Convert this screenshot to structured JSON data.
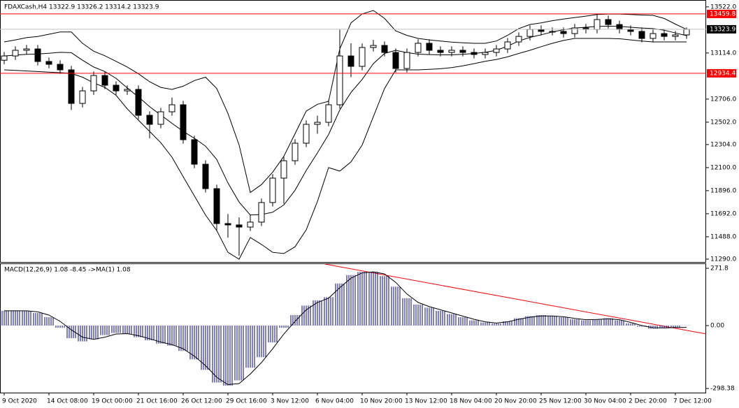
{
  "chart_data": [
    {
      "type": "candlestick",
      "title": "FDAXCash,H4  13322.9 13326.2 13314.2 13323.9",
      "categories": [
        "9 Oct 2020",
        null,
        null,
        null,
        "14 Oct 08:00",
        null,
        null,
        null,
        "19 Oct 00:00",
        null,
        null,
        null,
        "21 Oct 16:00",
        null,
        null,
        null,
        "26 Oct 12:00",
        null,
        null,
        null,
        "29 Oct 16:00",
        null,
        null,
        null,
        "3 Nov 12:00",
        null,
        null,
        null,
        "6 Nov 04:00",
        null,
        null,
        null,
        "10 Nov 20:00",
        null,
        null,
        null,
        "13 Nov 12:00",
        null,
        null,
        null,
        "18 Nov 04:00",
        null,
        null,
        null,
        "20 Nov 20:00",
        null,
        null,
        null,
        "25 Nov 12:00",
        null,
        null,
        null,
        "30 Nov 04:00",
        null,
        null,
        null,
        "2 Dec 20:00",
        null,
        null,
        null,
        "7 Dec 12:00",
        null
      ],
      "open": [
        13050,
        13088,
        13138,
        13150,
        13039,
        13014,
        12965,
        12668,
        12779,
        12915,
        12829,
        12779,
        12792,
        12563,
        12483,
        12594,
        12656,
        12347,
        12130,
        11914,
        11605,
        11593,
        11574,
        11618,
        11791,
        12007,
        12161,
        12316,
        12483,
        12501,
        12656,
        13088,
        12996,
        13163,
        13181,
        13119,
        12977,
        13119,
        13200,
        13138,
        13119,
        13138,
        13119,
        13101,
        13119,
        13150,
        13212,
        13261,
        13323,
        13305,
        13305,
        13286,
        13336,
        13323,
        13410,
        13366,
        13323,
        13305,
        13243,
        13286,
        13261,
        13274
      ],
      "high": [
        13123,
        13173,
        13185,
        13185,
        13074,
        13049,
        13000,
        12814,
        12950,
        12950,
        12864,
        12827,
        12827,
        12598,
        12629,
        12720,
        12691,
        12382,
        12165,
        11949,
        11690,
        11660,
        11680,
        11826,
        12042,
        12196,
        12351,
        12518,
        12560,
        12700,
        13320,
        13200,
        13198,
        13230,
        13216,
        13154,
        13154,
        13235,
        13235,
        13173,
        13173,
        13173,
        13154,
        13154,
        13185,
        13247,
        13296,
        13358,
        13358,
        13340,
        13340,
        13371,
        13371,
        13460,
        13445,
        13401,
        13358,
        13340,
        13321,
        13321,
        13309,
        13340
      ],
      "low": [
        13015,
        13053,
        13103,
        13004,
        12979,
        12930,
        12610,
        12633,
        12744,
        12794,
        12744,
        12744,
        12528,
        12360,
        12448,
        12559,
        12312,
        12095,
        11879,
        11540,
        11480,
        11320,
        11539,
        11583,
        11756,
        11780,
        12126,
        12281,
        12400,
        12466,
        12621,
        12900,
        12961,
        13128,
        13084,
        12942,
        12942,
        13084,
        13103,
        13084,
        13084,
        13084,
        13066,
        13066,
        13084,
        13115,
        13177,
        13226,
        13270,
        13270,
        13251,
        13251,
        13288,
        13288,
        13331,
        13288,
        13270,
        13208,
        13208,
        13226,
        13226,
        13239
      ],
      "close": [
        13088,
        13138,
        13150,
        13039,
        13014,
        12965,
        12668,
        12779,
        12915,
        12829,
        12779,
        12792,
        12563,
        12483,
        12594,
        12656,
        12347,
        12130,
        11914,
        11605,
        11593,
        11574,
        11618,
        11791,
        12007,
        12161,
        12316,
        12483,
        12501,
        12656,
        13088,
        12996,
        13163,
        13181,
        13119,
        12977,
        13119,
        13200,
        13138,
        13119,
        13138,
        13119,
        13101,
        13119,
        13150,
        13212,
        13261,
        13323,
        13305,
        13305,
        13286,
        13336,
        13323,
        13410,
        13366,
        13323,
        13305,
        13243,
        13286,
        13261,
        13274,
        13323.9
      ],
      "bands": {
        "upper": [
          13212,
          13230,
          13250,
          13260,
          13280,
          13300,
          13300,
          13200,
          13130,
          13090,
          13040,
          12990,
          12930,
          12860,
          12810,
          12792,
          12820,
          12870,
          12900,
          12800,
          12580,
          12300,
          11880,
          11950,
          12060,
          12200,
          12400,
          12600,
          12660,
          12687,
          13150,
          13380,
          13460,
          13490,
          13420,
          13310,
          13270,
          13243,
          13230,
          13220,
          13210,
          13205,
          13200,
          13200,
          13220,
          13270,
          13330,
          13366,
          13380,
          13400,
          13415,
          13428,
          13440,
          13455,
          13459,
          13459,
          13455,
          13450,
          13447,
          13420,
          13370,
          13323
        ],
        "middle": [
          13088,
          13095,
          13102,
          13105,
          13112,
          13120,
          13117,
          13050,
          12990,
          12950,
          12890,
          12805,
          12725,
          12640,
          12565,
          12492,
          12420,
          12360,
          12290,
          12172,
          11965,
          11795,
          11681,
          11685,
          11705,
          11770,
          11900,
          12075,
          12230,
          12393,
          12610,
          12765,
          12880,
          13020,
          13110,
          13138,
          13118,
          13104,
          13100,
          13098,
          13098,
          13102,
          13110,
          13120,
          13138,
          13175,
          13220,
          13252,
          13275,
          13300,
          13320,
          13335,
          13342,
          13349,
          13351,
          13350,
          13342,
          13335,
          13330,
          13316,
          13291,
          13268
        ],
        "lower": [
          12965,
          12960,
          12955,
          12950,
          12945,
          12940,
          12934,
          12900,
          12850,
          12810,
          12740,
          12620,
          12520,
          12420,
          12320,
          12192,
          12020,
          11850,
          11680,
          11543,
          11350,
          11290,
          11482,
          11420,
          11350,
          11340,
          11400,
          11550,
          11800,
          12100,
          12069,
          12150,
          12300,
          12550,
          12800,
          12965,
          12965,
          12965,
          12970,
          12975,
          12985,
          13000,
          13020,
          13040,
          13057,
          13080,
          13110,
          13138,
          13170,
          13200,
          13225,
          13243,
          13243,
          13243,
          13243,
          13240,
          13230,
          13220,
          13212,
          13212,
          13212,
          13212
        ]
      },
      "hlines": [
        13459.8,
        12934.4
      ],
      "hline_color": "#ff0000",
      "last_price": 13323.9,
      "ylim": [
        11265,
        13583
      ],
      "yticks": [
        {
          "value": 13522,
          "label": "13522.0"
        },
        {
          "value": 13114,
          "label": "13114.0"
        },
        {
          "value": 12706,
          "label": "12706.0"
        },
        {
          "value": 12502,
          "label": "12502.0"
        },
        {
          "value": 12304,
          "label": "12304.0"
        },
        {
          "value": 12100,
          "label": "12100.0"
        },
        {
          "value": 11896,
          "label": "11896.0"
        },
        {
          "value": 11692,
          "label": "11692.0"
        },
        {
          "value": 11488,
          "label": "11488.0"
        },
        {
          "value": 11290,
          "label": "11290.0"
        }
      ]
    },
    {
      "type": "macd",
      "title": "MACD(12,26,9) 1.08 -8.45  ->MA(1) 1.08",
      "values": [
        70,
        72,
        70,
        60,
        40,
        -10,
        -60,
        -75,
        -65,
        -45,
        -35,
        -40,
        -55,
        -70,
        -85,
        -95,
        -120,
        -160,
        -210,
        -270,
        -285,
        -260,
        -200,
        -150,
        -80,
        -10,
        50,
        95,
        120,
        135,
        200,
        240,
        255,
        255,
        235,
        185,
        130,
        100,
        85,
        70,
        55,
        40,
        25,
        15,
        10,
        20,
        35,
        45,
        50,
        45,
        40,
        30,
        25,
        30,
        35,
        25,
        10,
        -5,
        -15,
        -12,
        -8,
        1.08
      ],
      "signal": [
        70,
        70,
        70,
        65,
        50,
        20,
        -20,
        -55,
        -65,
        -55,
        -40,
        -38,
        -48,
        -62,
        -78,
        -90,
        -110,
        -145,
        -190,
        -245,
        -280,
        -275,
        -230,
        -175,
        -110,
        -40,
        20,
        75,
        110,
        130,
        180,
        225,
        250,
        255,
        245,
        205,
        150,
        110,
        90,
        75,
        60,
        45,
        30,
        18,
        12,
        18,
        30,
        40,
        46,
        46,
        42,
        34,
        28,
        29,
        32,
        28,
        15,
        0,
        -10,
        -11,
        -9,
        -8.45
      ],
      "color": "#000080",
      "ylim": [
        -318,
        291.8
      ],
      "yticks": [
        271.8,
        {
          "value": 0,
          "label": "0.00"
        },
        -298.38
      ]
    }
  ]
}
